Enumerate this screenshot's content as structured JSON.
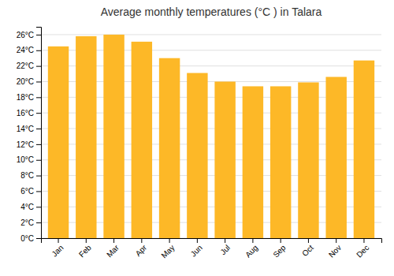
{
  "chart_data": {
    "type": "bar",
    "title": "Average monthly temperatures (°C ) in Talara",
    "categories": [
      "Jan",
      "Feb",
      "Mar",
      "Apr",
      "May",
      "Jun",
      "Jul",
      "Aug",
      "Sep",
      "Oct",
      "Nov",
      "Dec"
    ],
    "values": [
      24.5,
      25.8,
      26.0,
      25.1,
      23.0,
      21.1,
      20.0,
      19.4,
      19.4,
      19.9,
      20.6,
      22.7
    ],
    "color": "#FDB827",
    "ylim": [
      0,
      27
    ],
    "yticks": [
      {
        "value": 0,
        "label": "0°C"
      },
      {
        "value": 2,
        "label": "2°C"
      },
      {
        "value": 4,
        "label": "4°C"
      },
      {
        "value": 6,
        "label": "6°C"
      },
      {
        "value": 8,
        "label": "8°C"
      },
      {
        "value": 10,
        "label": "10°C"
      },
      {
        "value": 12,
        "label": "12°C"
      },
      {
        "value": 14,
        "label": "14°C"
      },
      {
        "value": 16,
        "label": "16°C"
      },
      {
        "value": 18,
        "label": "18°C"
      },
      {
        "value": 20,
        "label": "20°C"
      },
      {
        "value": 22,
        "label": "22°C"
      },
      {
        "value": 24,
        "label": "24°C"
      },
      {
        "value": 26,
        "label": "26°C"
      }
    ],
    "grid": true
  }
}
